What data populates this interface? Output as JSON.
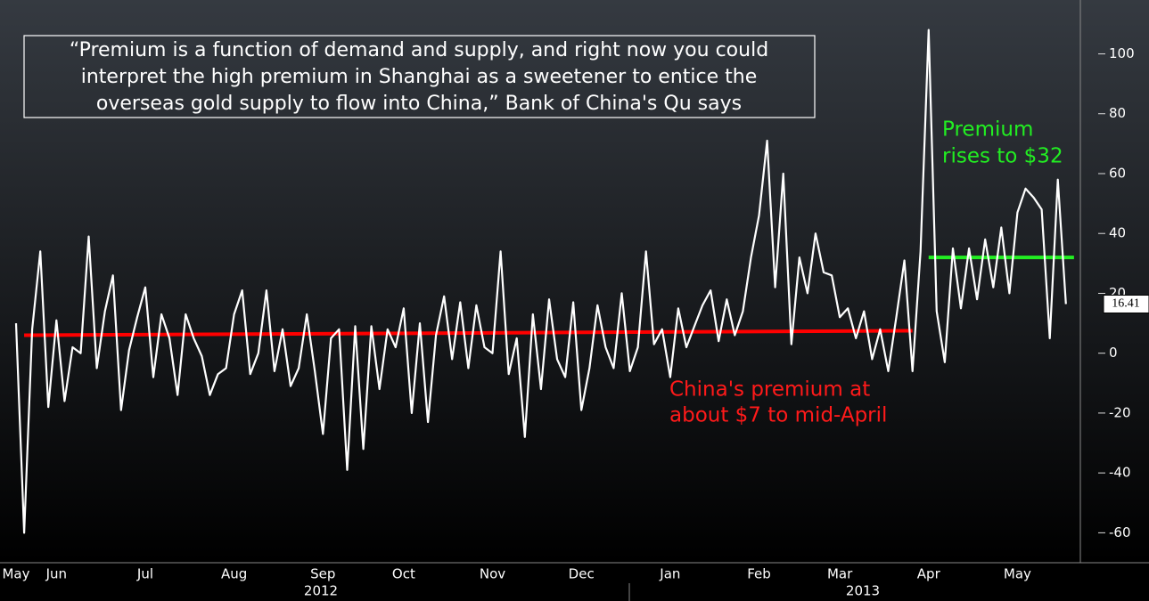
{
  "chart_data": {
    "type": "line",
    "annotations": {
      "quote": [
        "“Premium is a function of demand and supply, and right now you could",
        "interpret the high premium in Shanghai as a sweetener to entice the",
        "overseas gold supply to flow into China,” Bank of China's Qu says"
      ],
      "green": [
        "Premium",
        "rises to $32"
      ],
      "red": [
        "China's premium at",
        "about $7 to mid-April"
      ],
      "years": [
        "2012",
        "2013"
      ]
    },
    "categories": [
      "May",
      null,
      null,
      null,
      null,
      "Jun",
      null,
      null,
      null,
      null,
      null,
      null,
      null,
      null,
      null,
      null,
      "Jul",
      null,
      null,
      null,
      null,
      null,
      null,
      null,
      null,
      null,
      null,
      "Aug",
      null,
      null,
      null,
      null,
      null,
      null,
      null,
      null,
      null,
      null,
      "Sep",
      null,
      null,
      null,
      null,
      null,
      null,
      null,
      null,
      null,
      "Oct",
      null,
      null,
      null,
      null,
      null,
      null,
      null,
      null,
      null,
      null,
      "Nov",
      null,
      null,
      null,
      null,
      null,
      null,
      null,
      null,
      null,
      null,
      "Dec",
      null,
      null,
      null,
      null,
      null,
      null,
      null,
      null,
      null,
      null,
      "Jan",
      null,
      null,
      null,
      null,
      null,
      null,
      null,
      null,
      null,
      null,
      "Feb",
      null,
      null,
      null,
      null,
      null,
      null,
      null,
      null,
      null,
      "Mar",
      null,
      null,
      null,
      null,
      null,
      null,
      null,
      null,
      null,
      null,
      "Apr",
      null,
      null,
      null,
      null,
      null,
      null,
      null,
      null,
      null,
      null,
      "May",
      null,
      null,
      null,
      null,
      null,
      null
    ],
    "series": [
      {
        "color": "#ffffff",
        "values": [
          10,
          -60,
          8,
          34,
          -18,
          11,
          -16,
          2,
          0,
          39,
          -5,
          14,
          26,
          -19,
          1,
          12,
          22,
          -8,
          13,
          5,
          -14,
          13,
          5,
          -1,
          -14,
          -7,
          -5,
          13,
          21,
          -7,
          0,
          21,
          -6,
          8,
          -11,
          -5,
          13,
          -6,
          -27,
          5,
          8,
          -39,
          9,
          -32,
          9,
          -12,
          8,
          2,
          15,
          -20,
          10,
          -23,
          6,
          19,
          -2,
          17,
          -5,
          16,
          2,
          0,
          34,
          -7,
          5,
          -28,
          13,
          -12,
          18,
          -2,
          -8,
          17,
          -19,
          -5,
          16,
          2,
          -5,
          20,
          -6,
          2,
          34,
          3,
          8,
          -8,
          15,
          2,
          9,
          16,
          21,
          4,
          18,
          6,
          14,
          32,
          46,
          71,
          22,
          60,
          3,
          32,
          20,
          40,
          27,
          26,
          12,
          15,
          5,
          14,
          -2,
          8,
          -6,
          12,
          31,
          -6,
          34,
          108,
          14,
          -3,
          35,
          15,
          35,
          18,
          38,
          22,
          42,
          20,
          47,
          55,
          52,
          48,
          5,
          58,
          16.41
        ]
      }
    ],
    "reference_lines": [
      {
        "color": "#ff0000",
        "from": 1,
        "to": 111,
        "values": [
          6,
          7.5
        ]
      },
      {
        "color": "#22ee22",
        "from": 113,
        "to": 131,
        "values": [
          32,
          32
        ]
      }
    ],
    "ylim": [
      -70,
      118
    ],
    "yticks": [
      -60,
      -40,
      -20,
      0,
      20,
      40,
      60,
      80,
      100
    ]
  }
}
